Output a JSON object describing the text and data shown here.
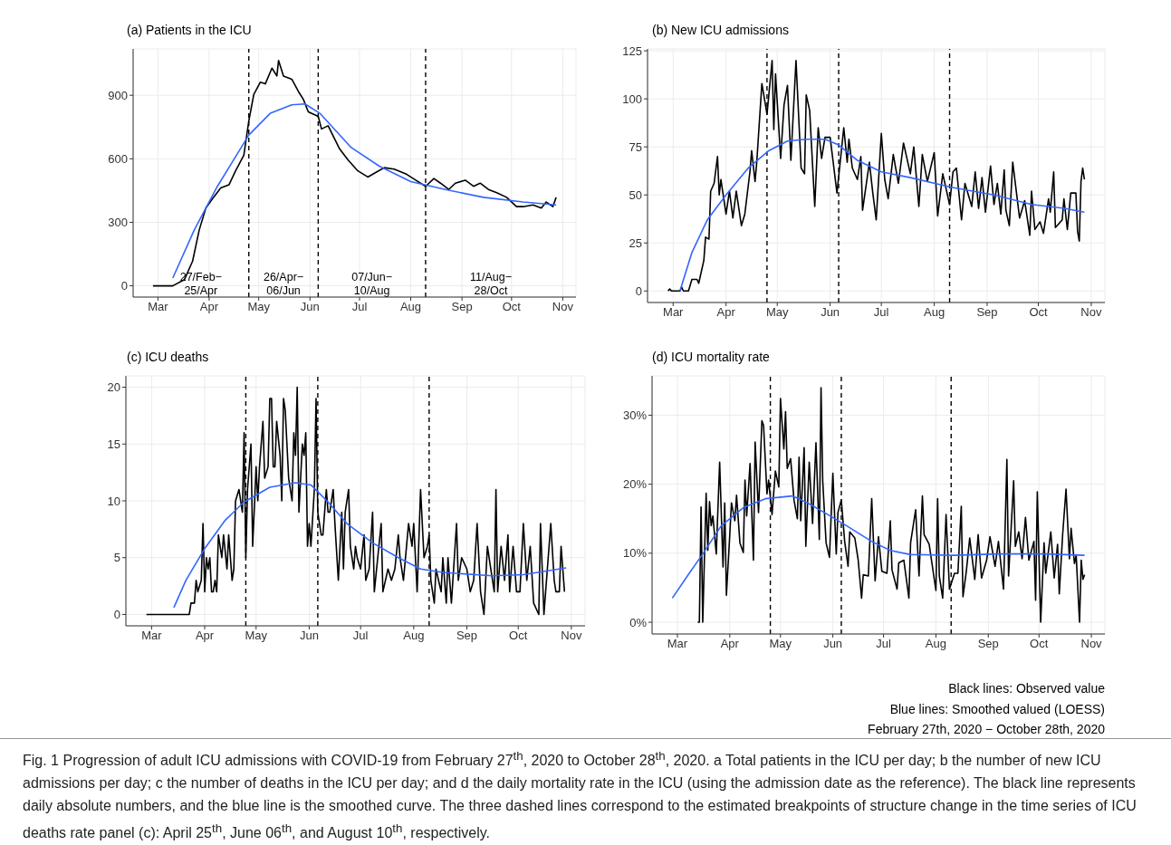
{
  "chart_data": [
    {
      "type": "line",
      "title": "(a) Patients in the ICU",
      "xlim": [
        "2020-02-15",
        "2020-11-09"
      ],
      "ylim": [
        -53,
        1119
      ],
      "xticks": [
        {
          "value": "2020-03-01",
          "label": "Mar"
        },
        {
          "value": "2020-04-01",
          "label": "Apr"
        },
        {
          "value": "2020-05-01",
          "label": "May"
        },
        {
          "value": "2020-06-01",
          "label": "Jun"
        },
        {
          "value": "2020-07-01",
          "label": "Jul"
        },
        {
          "value": "2020-08-01",
          "label": "Aug"
        },
        {
          "value": "2020-09-01",
          "label": "Sep"
        },
        {
          "value": "2020-10-01",
          "label": "Oct"
        },
        {
          "value": "2020-11-01",
          "label": "Nov"
        }
      ],
      "yticks": [
        0,
        300,
        600,
        900
      ],
      "grid": true,
      "ref_lines": [
        {
          "axis": "x",
          "value": "2020-04-25",
          "color": "#000000",
          "line_style": "dashed"
        },
        {
          "axis": "x",
          "value": "2020-06-06",
          "color": "#000000",
          "line_style": "dashed"
        },
        {
          "axis": "x",
          "value": "2020-08-10",
          "color": "#000000",
          "line_style": "dashed"
        }
      ],
      "annotations": [
        "27/Feb−\n25/Apr",
        "26/Apr−\n06/Jun",
        "07/Jun−\n10/Aug",
        "11/Aug−\n28/Oct"
      ],
      "series": [
        {
          "color": "#000000",
          "x": [
            "2020-02-27",
            "2020-03-10",
            "2020-03-17",
            "2020-03-22",
            "2020-03-26",
            "2020-03-30",
            "2020-04-03",
            "2020-04-08",
            "2020-04-13",
            "2020-04-17",
            "2020-04-22",
            "2020-04-25",
            "2020-04-28",
            "2020-05-02",
            "2020-05-05",
            "2020-05-09",
            "2020-05-12",
            "2020-05-13",
            "2020-05-16",
            "2020-05-21",
            "2020-05-25",
            "2020-05-28",
            "2020-05-31",
            "2020-06-06",
            "2020-06-08",
            "2020-06-12",
            "2020-06-19",
            "2020-06-24",
            "2020-06-30",
            "2020-07-06",
            "2020-07-11",
            "2020-07-16",
            "2020-07-22",
            "2020-07-29",
            "2020-08-04",
            "2020-08-10",
            "2020-08-15",
            "2020-08-19",
            "2020-08-24",
            "2020-08-28",
            "2020-09-03",
            "2020-09-08",
            "2020-09-12",
            "2020-09-17",
            "2020-09-22",
            "2020-09-28",
            "2020-10-04",
            "2020-10-08",
            "2020-10-14",
            "2020-10-19",
            "2020-10-22",
            "2020-10-26",
            "2020-10-28"
          ],
          "values": [
            0,
            0,
            29,
            117,
            264,
            367,
            411,
            462,
            477,
            543,
            617,
            778,
            903,
            962,
            954,
            1028,
            991,
            1064,
            991,
            976,
            918,
            881,
            822,
            800,
            741,
            756,
            646,
            595,
            543,
            514,
            536,
            558,
            551,
            529,
            499,
            470,
            507,
            485,
            455,
            485,
            499,
            470,
            485,
            455,
            440,
            418,
            374,
            374,
            382,
            367,
            396,
            374,
            418
          ]
        },
        {
          "color": "#3366ff",
          "x": [
            "2020-03-10",
            "2020-03-23",
            "2020-04-06",
            "2020-04-25",
            "2020-05-08",
            "2020-05-21",
            "2020-05-29",
            "2020-06-07",
            "2020-06-26",
            "2020-07-13",
            "2020-08-01",
            "2020-08-22",
            "2020-09-14",
            "2020-10-08",
            "2020-10-28"
          ],
          "values": [
            37,
            264,
            470,
            712,
            815,
            855,
            859,
            815,
            653,
            565,
            492,
            455,
            418,
            396,
            382
          ]
        }
      ]
    },
    {
      "type": "line",
      "title": "(b) New ICU admissions",
      "xlim": [
        "2020-02-15",
        "2020-11-09"
      ],
      "ylim": [
        -6,
        126
      ],
      "xticks": [
        {
          "value": "2020-03-01",
          "label": "Mar"
        },
        {
          "value": "2020-04-01",
          "label": "Apr"
        },
        {
          "value": "2020-05-01",
          "label": "May"
        },
        {
          "value": "2020-06-01",
          "label": "Jun"
        },
        {
          "value": "2020-07-01",
          "label": "Jul"
        },
        {
          "value": "2020-08-01",
          "label": "Aug"
        },
        {
          "value": "2020-09-01",
          "label": "Sep"
        },
        {
          "value": "2020-10-01",
          "label": "Oct"
        },
        {
          "value": "2020-11-01",
          "label": "Nov"
        }
      ],
      "yticks": [
        0,
        25,
        50,
        75,
        100,
        125
      ],
      "grid": true,
      "ref_lines": [
        {
          "axis": "x",
          "value": "2020-04-25",
          "color": "#000000",
          "line_style": "dashed"
        },
        {
          "axis": "x",
          "value": "2020-06-06",
          "color": "#000000",
          "line_style": "dashed"
        },
        {
          "axis": "x",
          "value": "2020-08-10",
          "color": "#000000",
          "line_style": "dashed"
        }
      ],
      "series": [
        {
          "color": "#000000",
          "x": [
            "2020-02-27",
            "2020-02-28",
            "2020-02-29",
            "2020-03-05",
            "2020-03-06",
            "2020-03-07",
            "2020-03-10",
            "2020-03-12",
            "2020-03-15",
            "2020-03-16",
            "2020-03-19",
            "2020-03-20",
            "2020-03-22",
            "2020-03-23",
            "2020-03-25",
            "2020-03-27",
            "2020-03-28",
            "2020-03-29",
            "2020-04-01",
            "2020-04-03",
            "2020-04-05",
            "2020-04-07",
            "2020-04-10",
            "2020-04-12",
            "2020-04-15",
            "2020-04-16",
            "2020-04-18",
            "2020-04-19",
            "2020-04-22",
            "2020-04-25",
            "2020-04-28",
            "2020-04-29",
            "2020-04-30",
            "2020-05-03",
            "2020-05-05",
            "2020-05-07",
            "2020-05-09",
            "2020-05-12",
            "2020-05-15",
            "2020-05-17",
            "2020-05-18",
            "2020-05-20",
            "2020-05-23",
            "2020-05-25",
            "2020-05-27",
            "2020-05-29",
            "2020-06-01",
            "2020-06-05",
            "2020-06-09",
            "2020-06-11",
            "2020-06-12",
            "2020-06-14",
            "2020-06-17",
            "2020-06-19",
            "2020-06-20",
            "2020-06-24",
            "2020-06-26",
            "2020-06-28",
            "2020-07-01",
            "2020-07-03",
            "2020-07-05",
            "2020-07-08",
            "2020-07-11",
            "2020-07-14",
            "2020-07-18",
            "2020-07-20",
            "2020-07-23",
            "2020-07-25",
            "2020-07-28",
            "2020-08-01",
            "2020-08-03",
            "2020-08-06",
            "2020-08-10",
            "2020-08-12",
            "2020-08-14",
            "2020-08-17",
            "2020-08-19",
            "2020-08-23",
            "2020-08-25",
            "2020-08-27",
            "2020-08-29",
            "2020-08-31",
            "2020-09-03",
            "2020-09-05",
            "2020-09-07",
            "2020-09-09",
            "2020-09-11",
            "2020-09-12",
            "2020-09-14",
            "2020-09-16",
            "2020-09-20",
            "2020-09-23",
            "2020-09-26",
            "2020-09-27",
            "2020-09-29",
            "2020-10-02",
            "2020-10-04",
            "2020-10-07",
            "2020-10-08",
            "2020-10-10",
            "2020-10-11",
            "2020-10-15",
            "2020-10-16",
            "2020-10-18",
            "2020-10-20",
            "2020-10-23",
            "2020-10-24",
            "2020-10-25",
            "2020-10-26",
            "2020-10-27",
            "2020-10-28"
          ],
          "values": [
            0,
            1,
            0,
            0,
            2,
            0,
            0,
            6,
            6,
            4,
            16,
            28,
            27,
            52,
            56,
            70,
            50,
            58,
            40,
            52,
            38,
            52,
            34,
            40,
            62,
            73,
            57,
            67,
            108,
            92,
            120,
            84,
            113,
            69,
            97,
            107,
            68,
            120,
            64,
            61,
            102,
            94,
            44,
            85,
            69,
            80,
            80,
            51,
            85,
            67,
            79,
            64,
            58,
            70,
            42,
            67,
            51,
            37,
            82,
            58,
            48,
            71,
            56,
            77,
            61,
            75,
            44,
            71,
            57,
            72,
            39,
            61,
            45,
            62,
            64,
            37,
            56,
            44,
            62,
            43,
            59,
            41,
            65,
            45,
            56,
            40,
            63,
            42,
            34,
            67,
            38,
            47,
            29,
            52,
            32,
            36,
            30,
            48,
            41,
            62,
            33,
            37,
            48,
            32,
            51,
            51,
            31,
            26,
            57,
            64,
            58
          ]
        },
        {
          "color": "#3366ff",
          "x": [
            "2020-03-05",
            "2020-03-12",
            "2020-03-21",
            "2020-04-01",
            "2020-04-14",
            "2020-04-26",
            "2020-05-07",
            "2020-05-18",
            "2020-05-29",
            "2020-06-06",
            "2020-06-17",
            "2020-07-01",
            "2020-07-18",
            "2020-08-11",
            "2020-09-05",
            "2020-09-27",
            "2020-10-16",
            "2020-10-28"
          ],
          "values": [
            0,
            20,
            37,
            50,
            64,
            73,
            78,
            79,
            79,
            76,
            68,
            62,
            59,
            54,
            50,
            45,
            43,
            41
          ]
        }
      ]
    },
    {
      "type": "line",
      "title": "(c) ICU deaths",
      "xlim": [
        "2020-02-15",
        "2020-11-09"
      ],
      "ylim": [
        -1,
        21
      ],
      "xticks": [
        {
          "value": "2020-03-01",
          "label": "Mar"
        },
        {
          "value": "2020-04-01",
          "label": "Apr"
        },
        {
          "value": "2020-05-01",
          "label": "May"
        },
        {
          "value": "2020-06-01",
          "label": "Jun"
        },
        {
          "value": "2020-07-01",
          "label": "Jul"
        },
        {
          "value": "2020-08-01",
          "label": "Aug"
        },
        {
          "value": "2020-09-01",
          "label": "Sep"
        },
        {
          "value": "2020-10-01",
          "label": "Oct"
        },
        {
          "value": "2020-11-01",
          "label": "Nov"
        }
      ],
      "yticks": [
        0,
        5,
        10,
        15,
        20
      ],
      "grid": true,
      "ref_lines": [
        {
          "axis": "x",
          "value": "2020-04-25",
          "color": "#000000",
          "line_style": "dashed"
        },
        {
          "axis": "x",
          "value": "2020-06-06",
          "color": "#000000",
          "line_style": "dashed"
        },
        {
          "axis": "x",
          "value": "2020-08-10",
          "color": "#000000",
          "line_style": "dashed"
        }
      ],
      "series": [
        {
          "color": "#000000",
          "x": [
            "2020-02-27",
            "2020-03-23",
            "2020-03-24",
            "2020-03-26",
            "2020-03-27",
            "2020-03-28",
            "2020-03-30",
            "2020-03-31",
            "2020-04-01",
            "2020-04-02",
            "2020-04-03",
            "2020-04-04",
            "2020-04-05",
            "2020-04-06",
            "2020-04-07",
            "2020-04-08",
            "2020-04-09",
            "2020-04-11",
            "2020-04-12",
            "2020-04-14",
            "2020-04-15",
            "2020-04-17",
            "2020-04-18",
            "2020-04-19",
            "2020-04-21",
            "2020-04-23",
            "2020-04-24",
            "2020-04-25",
            "2020-04-26",
            "2020-04-28",
            "2020-04-29",
            "2020-05-01",
            "2020-05-02",
            "2020-05-03",
            "2020-05-05",
            "2020-05-06",
            "2020-05-08",
            "2020-05-09",
            "2020-05-10",
            "2020-05-11",
            "2020-05-12",
            "2020-05-13",
            "2020-05-15",
            "2020-05-16",
            "2020-05-17",
            "2020-05-18",
            "2020-05-20",
            "2020-05-22",
            "2020-05-23",
            "2020-05-24",
            "2020-05-25",
            "2020-05-26",
            "2020-05-28",
            "2020-05-29",
            "2020-05-30",
            "2020-05-31",
            "2020-06-01",
            "2020-06-02",
            "2020-06-04",
            "2020-06-05",
            "2020-06-06",
            "2020-06-07",
            "2020-06-08",
            "2020-06-09",
            "2020-06-11",
            "2020-06-12",
            "2020-06-13",
            "2020-06-15",
            "2020-06-16",
            "2020-06-18",
            "2020-06-20",
            "2020-06-21",
            "2020-06-22",
            "2020-06-24",
            "2020-06-25",
            "2020-06-27",
            "2020-06-28",
            "2020-06-29",
            "2020-07-01",
            "2020-07-03",
            "2020-07-04",
            "2020-07-06",
            "2020-07-08",
            "2020-07-09",
            "2020-07-11",
            "2020-07-13",
            "2020-07-14",
            "2020-07-17",
            "2020-07-19",
            "2020-07-21",
            "2020-07-23",
            "2020-07-24",
            "2020-07-26",
            "2020-07-29",
            "2020-07-31",
            "2020-08-01",
            "2020-08-03",
            "2020-08-05",
            "2020-08-07",
            "2020-08-09",
            "2020-08-10",
            "2020-08-11",
            "2020-08-13",
            "2020-08-14",
            "2020-08-17",
            "2020-08-18",
            "2020-08-20",
            "2020-08-21",
            "2020-08-23",
            "2020-08-26",
            "2020-08-27",
            "2020-08-29",
            "2020-09-01",
            "2020-09-03",
            "2020-09-05",
            "2020-09-07",
            "2020-09-09",
            "2020-09-11",
            "2020-09-13",
            "2020-09-15",
            "2020-09-17",
            "2020-09-18",
            "2020-09-19",
            "2020-09-21",
            "2020-09-23",
            "2020-09-25",
            "2020-09-26",
            "2020-09-28",
            "2020-09-30",
            "2020-10-02",
            "2020-10-04",
            "2020-10-06",
            "2020-10-08",
            "2020-10-10",
            "2020-10-13",
            "2020-10-14",
            "2020-10-16",
            "2020-10-18",
            "2020-10-20",
            "2020-10-22",
            "2020-10-23",
            "2020-10-25",
            "2020-10-26",
            "2020-10-28"
          ],
          "values": [
            0,
            0,
            1,
            1,
            3,
            2,
            3,
            8,
            2,
            5,
            4,
            5,
            2,
            2,
            3,
            2,
            7,
            5,
            7,
            4,
            7,
            3,
            4,
            10,
            11,
            9,
            16,
            5,
            11,
            15,
            6,
            13,
            10,
            13,
            17,
            12,
            13,
            19,
            19,
            13,
            13,
            17,
            14,
            10,
            19,
            18,
            12,
            10,
            16,
            14,
            20,
            9,
            15,
            14,
            16,
            6,
            8,
            6,
            11,
            19,
            9,
            8,
            7,
            7,
            11,
            9,
            9,
            11,
            8,
            3,
            9,
            4,
            9,
            11,
            6,
            4,
            6,
            5,
            4,
            7,
            3,
            4,
            9,
            2,
            5,
            8,
            2,
            4,
            3,
            4,
            7,
            5,
            3,
            8,
            6,
            8,
            2,
            11,
            5,
            6,
            7,
            3,
            1,
            4,
            2,
            5,
            1,
            5,
            1,
            8,
            3,
            5,
            4,
            2,
            3,
            8,
            2,
            0,
            6,
            4,
            2,
            11,
            2,
            6,
            3,
            7,
            2,
            6,
            2,
            2,
            8,
            3,
            6,
            1,
            0,
            8,
            0,
            4,
            8,
            3,
            2,
            2,
            6,
            2
          ]
        },
        {
          "color": "#3366ff",
          "x": [
            "2020-03-14",
            "2020-03-21",
            "2020-04-01",
            "2020-04-13",
            "2020-04-24",
            "2020-05-09",
            "2020-05-24",
            "2020-06-02",
            "2020-06-12",
            "2020-06-23",
            "2020-07-08",
            "2020-07-23",
            "2020-08-05",
            "2020-08-18",
            "2020-09-16",
            "2020-10-04",
            "2020-10-29"
          ],
          "values": [
            0.6,
            3,
            5.8,
            8.3,
            9.9,
            11.2,
            11.6,
            11.4,
            9.9,
            8,
            6.3,
            5,
            4,
            3.7,
            3.4,
            3.5,
            4.1
          ]
        }
      ]
    },
    {
      "type": "line",
      "title": "(d) ICU mortality rate",
      "xlim": [
        "2020-02-15",
        "2020-11-09"
      ],
      "ylim": [
        -1.7,
        35.7
      ],
      "xticks": [
        {
          "value": "2020-03-01",
          "label": "Mar"
        },
        {
          "value": "2020-04-01",
          "label": "Apr"
        },
        {
          "value": "2020-05-01",
          "label": "May"
        },
        {
          "value": "2020-06-01",
          "label": "Jun"
        },
        {
          "value": "2020-07-01",
          "label": "Jul"
        },
        {
          "value": "2020-08-01",
          "label": "Aug"
        },
        {
          "value": "2020-09-01",
          "label": "Sep"
        },
        {
          "value": "2020-10-01",
          "label": "Oct"
        },
        {
          "value": "2020-11-01",
          "label": "Nov"
        }
      ],
      "yticks": [
        {
          "value": 0,
          "label": "0%"
        },
        {
          "value": 10,
          "label": "10%"
        },
        {
          "value": 20,
          "label": "20%"
        },
        {
          "value": 30,
          "label": "30%"
        }
      ],
      "grid": true,
      "ref_lines": [
        {
          "axis": "x",
          "value": "2020-04-25",
          "color": "#000000",
          "line_style": "dashed"
        },
        {
          "axis": "x",
          "value": "2020-06-06",
          "color": "#000000",
          "line_style": "dashed"
        },
        {
          "axis": "x",
          "value": "2020-08-10",
          "color": "#000000",
          "line_style": "dashed"
        }
      ],
      "annotations": [
        "Black lines: Observed value",
        "Blue lines: Smoothed valued (LOESS)",
        "February 27th, 2020 − October 28th, 2020",
        "Fig. 1  Progression of adult ICU admissions with COVID-19 from February 27$^{th}$, 2020 to October 28$^{th}$, 2020. a Total patients in the ICU per day; b the number of new ICU admissions per day; c the number of deaths in the ICU per day; and d the daily mortality rate in the ICU (using the admission date as the reference). The black line represents daily absolute numbers, and the blue line is the smoothed curve. The three dashed lines correspond to the estimated breakpoints of structure change in the time series of ICU deaths rate panel (c): April 25$^{th}$, June 06$^{th}$, and August 10$^{th}$, respectively."
      ],
      "series": [
        {
          "color": "#000000",
          "x": [
            "2020-03-13",
            "2020-03-14",
            "2020-03-15",
            "2020-03-16",
            "2020-03-18",
            "2020-03-19",
            "2020-03-20",
            "2020-03-21",
            "2020-03-22",
            "2020-03-24",
            "2020-03-26",
            "2020-03-28",
            "2020-03-29",
            "2020-03-30",
            "2020-04-01",
            "2020-04-02",
            "2020-04-04",
            "2020-04-05",
            "2020-04-07",
            "2020-04-09",
            "2020-04-10",
            "2020-04-11",
            "2020-04-13",
            "2020-04-15",
            "2020-04-16",
            "2020-04-18",
            "2020-04-20",
            "2020-04-21",
            "2020-04-23",
            "2020-04-24",
            "2020-04-26",
            "2020-04-28",
            "2020-04-30",
            "2020-05-01",
            "2020-05-03",
            "2020-05-04",
            "2020-05-05",
            "2020-05-07",
            "2020-05-09",
            "2020-05-11",
            "2020-05-12",
            "2020-05-13",
            "2020-05-15",
            "2020-05-16",
            "2020-05-18",
            "2020-05-20",
            "2020-05-22",
            "2020-05-24",
            "2020-05-25",
            "2020-05-26",
            "2020-05-28",
            "2020-05-30",
            "2020-06-01",
            "2020-06-03",
            "2020-06-04",
            "2020-06-06",
            "2020-06-08",
            "2020-06-10",
            "2020-06-11",
            "2020-06-14",
            "2020-06-16",
            "2020-06-18",
            "2020-06-19",
            "2020-06-22",
            "2020-06-24",
            "2020-06-26",
            "2020-06-28",
            "2020-06-30",
            "2020-07-03",
            "2020-07-05",
            "2020-07-06",
            "2020-07-09",
            "2020-07-10",
            "2020-07-13",
            "2020-07-16",
            "2020-07-17",
            "2020-07-20",
            "2020-07-22",
            "2020-07-24",
            "2020-07-25",
            "2020-07-28",
            "2020-08-01",
            "2020-08-02",
            "2020-08-03",
            "2020-08-05",
            "2020-08-07",
            "2020-08-09",
            "2020-08-12",
            "2020-08-14",
            "2020-08-16",
            "2020-08-17",
            "2020-08-19",
            "2020-08-21",
            "2020-08-24",
            "2020-08-26",
            "2020-08-28",
            "2020-08-31",
            "2020-09-02",
            "2020-09-05",
            "2020-09-07",
            "2020-09-10",
            "2020-09-12",
            "2020-09-13",
            "2020-09-16",
            "2020-09-17",
            "2020-09-19",
            "2020-09-21",
            "2020-09-23",
            "2020-09-25",
            "2020-09-28",
            "2020-09-29",
            "2020-09-30",
            "2020-10-02",
            "2020-10-04",
            "2020-10-05",
            "2020-10-08",
            "2020-10-10",
            "2020-10-12",
            "2020-10-13",
            "2020-10-15",
            "2020-10-17",
            "2020-10-19",
            "2020-10-20",
            "2020-10-22",
            "2020-10-23",
            "2020-10-25",
            "2020-10-26",
            "2020-10-27",
            "2020-10-28"
          ],
          "values": [
            0,
            0,
            16.7,
            0,
            18.7,
            10.4,
            17.5,
            14,
            15.4,
            9.9,
            23.2,
            8,
            17.3,
            3.9,
            12.7,
            17.3,
            14.7,
            18.4,
            11.5,
            10.1,
            20.6,
            15.4,
            23,
            9,
            26.1,
            15.9,
            29.2,
            28.5,
            18.6,
            20.6,
            15.6,
            21.9,
            19.6,
            32.4,
            25.1,
            30.5,
            22.3,
            23.7,
            17.7,
            15,
            23.9,
            14.7,
            25.3,
            11,
            23.2,
            14.3,
            26,
            12,
            34,
            20.5,
            11.5,
            9.4,
            21.6,
            9.9,
            15.9,
            17.7,
            11.7,
            8.1,
            13.1,
            12.2,
            9,
            3.5,
            6.9,
            6.7,
            17.9,
            6,
            12.4,
            7.4,
            7.1,
            14.7,
            7.6,
            4.8,
            8.6,
            9,
            3.5,
            11.5,
            16.3,
            6.7,
            18.3,
            12.7,
            11.3,
            4.6,
            17.9,
            6.7,
            3.5,
            15.6,
            4.8,
            7.1,
            7.1,
            16.8,
            3.7,
            7.4,
            12.2,
            6.2,
            12.7,
            6.4,
            9,
            12.4,
            8.1,
            11.7,
            4.8,
            23.6,
            6.7,
            20.5,
            11,
            13.1,
            9.2,
            15.2,
            9,
            11.7,
            3.2,
            18.9,
            0,
            11.5,
            7.1,
            13.1,
            6.4,
            11.3,
            4.1,
            12.7,
            19.3,
            9.2,
            13.6,
            8.5,
            9.7,
            0,
            9,
            6.2,
            6.9
          ]
        },
        {
          "color": "#3366ff",
          "x": [
            "2020-02-27",
            "2020-03-08",
            "2020-03-16",
            "2020-03-27",
            "2020-04-09",
            "2020-04-22",
            "2020-05-08",
            "2020-05-17",
            "2020-05-29",
            "2020-06-09",
            "2020-06-24",
            "2020-07-05",
            "2020-07-17",
            "2020-08-12",
            "2020-09-08",
            "2020-10-04",
            "2020-10-28"
          ],
          "values": [
            3.5,
            7.1,
            9.9,
            14,
            16.6,
            17.9,
            18.3,
            17.3,
            15.6,
            14,
            11.7,
            10.4,
            9.8,
            9.7,
            9.9,
            9.9,
            9.7
          ]
        }
      ]
    }
  ]
}
